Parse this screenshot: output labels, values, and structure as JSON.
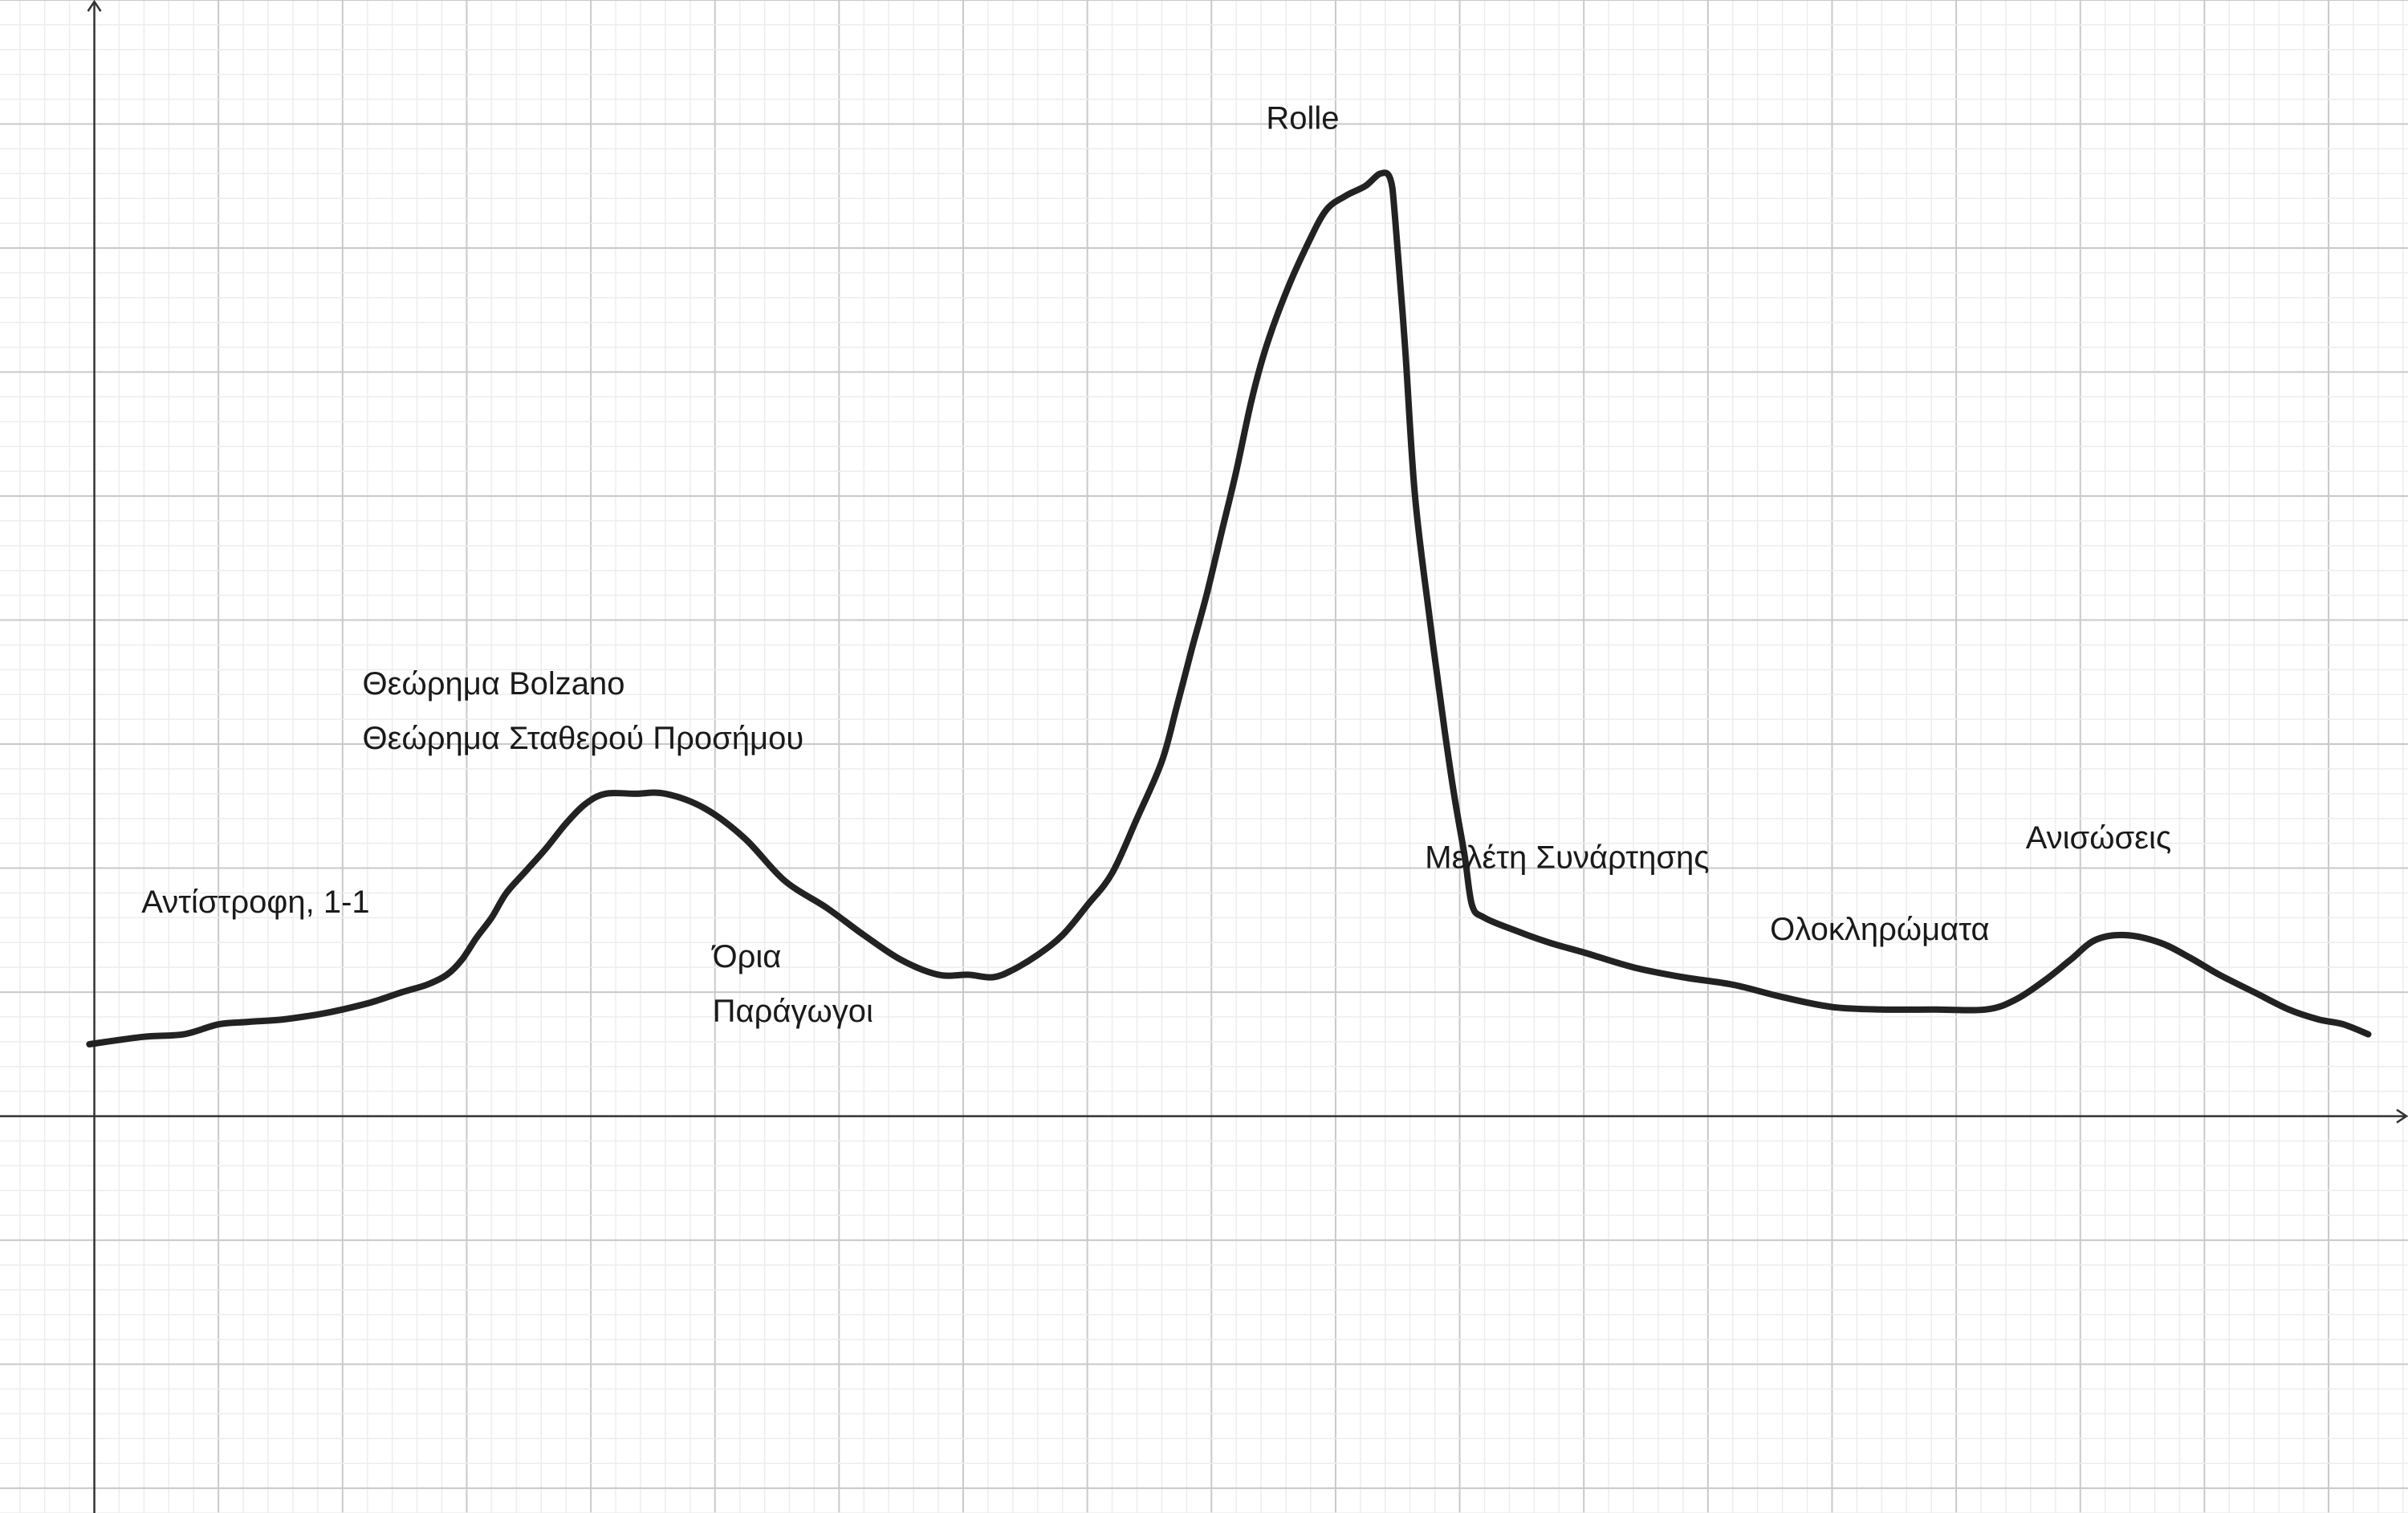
{
  "chart_data": {
    "type": "line",
    "title": "",
    "xlabel": "",
    "ylabel": "",
    "grid": true,
    "xlim": [
      -0.38,
      9.32
    ],
    "ylim": [
      -1.6,
      4.5
    ],
    "series": [
      {
        "points": [
          [
            -0.02,
            0.29
          ],
          [
            0.2,
            0.32
          ],
          [
            0.36,
            0.33
          ],
          [
            0.5,
            0.37
          ],
          [
            0.62,
            0.38
          ],
          [
            0.76,
            0.39
          ],
          [
            0.9,
            0.41
          ],
          [
            1.0,
            0.43
          ],
          [
            1.12,
            0.46
          ],
          [
            1.24,
            0.5
          ],
          [
            1.34,
            0.53
          ],
          [
            1.42,
            0.57
          ],
          [
            1.48,
            0.63
          ],
          [
            1.54,
            0.72
          ],
          [
            1.6,
            0.8
          ],
          [
            1.66,
            0.9
          ],
          [
            1.74,
            0.99
          ],
          [
            1.82,
            1.08
          ],
          [
            1.9,
            1.18
          ],
          [
            1.98,
            1.26
          ],
          [
            2.06,
            1.3
          ],
          [
            2.18,
            1.3
          ],
          [
            2.3,
            1.3
          ],
          [
            2.46,
            1.24
          ],
          [
            2.62,
            1.12
          ],
          [
            2.78,
            0.95
          ],
          [
            2.95,
            0.84
          ],
          [
            3.1,
            0.73
          ],
          [
            3.25,
            0.63
          ],
          [
            3.4,
            0.57
          ],
          [
            3.52,
            0.57
          ],
          [
            3.62,
            0.56
          ],
          [
            3.7,
            0.59
          ],
          [
            3.8,
            0.65
          ],
          [
            3.9,
            0.73
          ],
          [
            4.0,
            0.85
          ],
          [
            4.1,
            0.98
          ],
          [
            4.2,
            1.2
          ],
          [
            4.3,
            1.43
          ],
          [
            4.36,
            1.65
          ],
          [
            4.42,
            1.88
          ],
          [
            4.48,
            2.1
          ],
          [
            4.54,
            2.35
          ],
          [
            4.6,
            2.6
          ],
          [
            4.66,
            2.88
          ],
          [
            4.72,
            3.1
          ],
          [
            4.8,
            3.32
          ],
          [
            4.88,
            3.5
          ],
          [
            4.96,
            3.65
          ],
          [
            5.04,
            3.71
          ],
          [
            5.12,
            3.75
          ],
          [
            5.18,
            3.8
          ],
          [
            5.22,
            3.78
          ],
          [
            5.24,
            3.62
          ],
          [
            5.28,
            3.1
          ],
          [
            5.32,
            2.5
          ],
          [
            5.38,
            2.0
          ],
          [
            5.44,
            1.55
          ],
          [
            5.48,
            1.28
          ],
          [
            5.52,
            1.05
          ],
          [
            5.55,
            0.85
          ],
          [
            5.6,
            0.8
          ],
          [
            5.72,
            0.75
          ],
          [
            5.86,
            0.7
          ],
          [
            6.0,
            0.66
          ],
          [
            6.2,
            0.6
          ],
          [
            6.4,
            0.56
          ],
          [
            6.6,
            0.53
          ],
          [
            6.8,
            0.48
          ],
          [
            7.0,
            0.44
          ],
          [
            7.2,
            0.43
          ],
          [
            7.4,
            0.43
          ],
          [
            7.62,
            0.43
          ],
          [
            7.74,
            0.47
          ],
          [
            7.86,
            0.55
          ],
          [
            7.96,
            0.63
          ],
          [
            8.06,
            0.71
          ],
          [
            8.18,
            0.73
          ],
          [
            8.32,
            0.7
          ],
          [
            8.44,
            0.64
          ],
          [
            8.56,
            0.57
          ],
          [
            8.7,
            0.5
          ],
          [
            8.84,
            0.43
          ],
          [
            8.96,
            0.39
          ],
          [
            9.06,
            0.37
          ],
          [
            9.16,
            0.33
          ]
        ]
      }
    ],
    "annotations": [
      {
        "text": "Rolle",
        "x": 4.72,
        "y": 3.98
      },
      {
        "text": "Θεώρημα Bolzano",
        "x": 1.08,
        "y": 1.7
      },
      {
        "text": "Θεώρημα Σταθερού Προσήμου",
        "x": 1.08,
        "y": 1.48
      },
      {
        "text": "Αντίστροφη, 1-1",
        "x": 0.19,
        "y": 0.82
      },
      {
        "text": "Όρια",
        "x": 2.49,
        "y": 0.6
      },
      {
        "text": "Παράγωγοι",
        "x": 2.49,
        "y": 0.38
      },
      {
        "text": "Μελέτη Συνάρτησης",
        "x": 5.36,
        "y": 1.0
      },
      {
        "text": "Ολοκληρώματα",
        "x": 6.75,
        "y": 0.71
      },
      {
        "text": "Ανισώσεις",
        "x": 7.78,
        "y": 1.08
      }
    ]
  }
}
